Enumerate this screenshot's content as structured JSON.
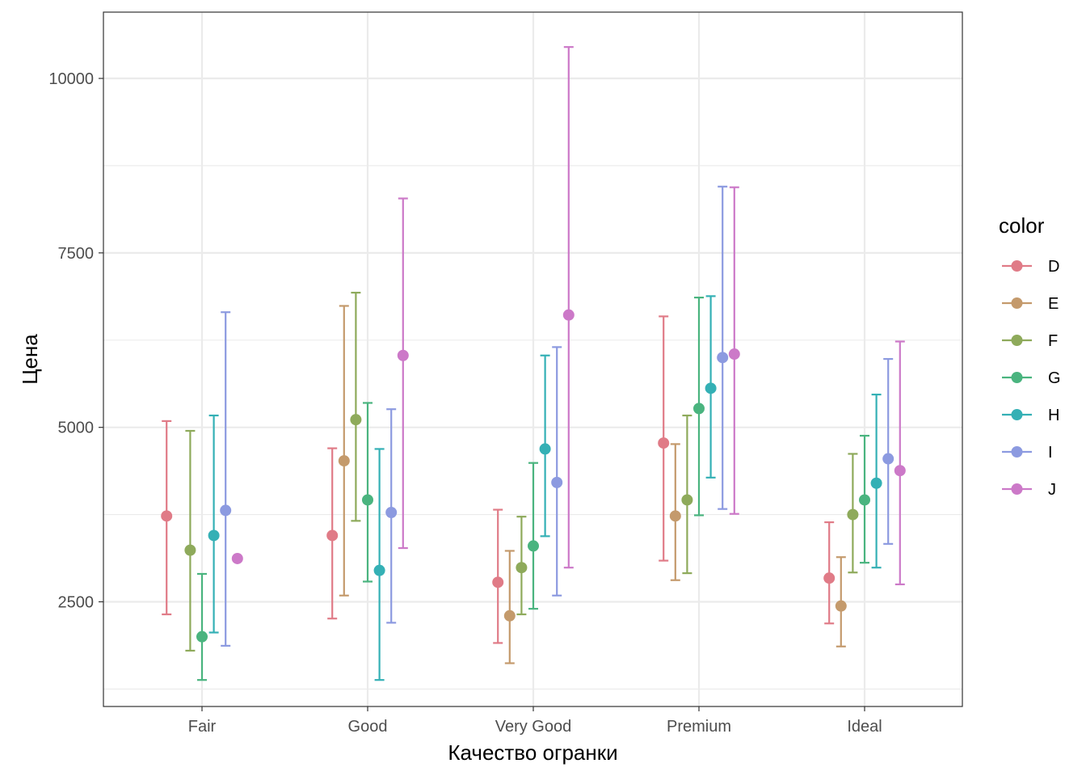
{
  "chart_data": {
    "type": "errorbar",
    "title": "",
    "xlabel": "Качество огранки",
    "ylabel": "Цена",
    "categories": [
      "Fair",
      "Good",
      "Very Good",
      "Premium",
      "Ideal"
    ],
    "y_ticks": [
      2500,
      5000,
      7500,
      10000
    ],
    "y_tick_labels": [
      "2500",
      "5000",
      "7500",
      "10000"
    ],
    "ylim": [
      1000,
      10950
    ],
    "grid": true,
    "legend": {
      "title": "color",
      "position": "right"
    },
    "series": [
      {
        "name": "D",
        "color": "#E07B87",
        "values": [
          3730,
          3450,
          2780,
          4775,
          2840
        ],
        "lower": [
          2320,
          2260,
          1910,
          3090,
          2190
        ],
        "upper": [
          5090,
          4700,
          3820,
          6590,
          3640
        ]
      },
      {
        "name": "E",
        "color": "#C49A6C",
        "values": [
          null,
          4520,
          2300,
          3730,
          2440
        ],
        "lower": [
          null,
          2590,
          1620,
          2810,
          1860
        ],
        "upper": [
          null,
          6740,
          3230,
          4760,
          3140
        ]
      },
      {
        "name": "F",
        "color": "#8EAA5B",
        "values": [
          3240,
          5110,
          2990,
          3960,
          3750
        ],
        "lower": [
          1800,
          3660,
          2320,
          2910,
          2920
        ],
        "upper": [
          4950,
          6930,
          3720,
          5170,
          4620
        ]
      },
      {
        "name": "G",
        "color": "#4AB47F",
        "values": [
          2000,
          3960,
          3300,
          5270,
          3960
        ],
        "lower": [
          1380,
          2790,
          2400,
          3740,
          3060
        ],
        "upper": [
          2900,
          5350,
          4490,
          6860,
          4880
        ]
      },
      {
        "name": "H",
        "color": "#34B0B5",
        "values": [
          3450,
          2950,
          4690,
          5560,
          4200
        ],
        "lower": [
          2060,
          1380,
          3440,
          4280,
          2990
        ],
        "upper": [
          5170,
          4690,
          6030,
          6880,
          5470
        ]
      },
      {
        "name": "I",
        "color": "#8C9AE0",
        "values": [
          3810,
          3780,
          4210,
          6000,
          4550
        ],
        "lower": [
          1870,
          2200,
          2590,
          3830,
          3330
        ],
        "upper": [
          6650,
          5260,
          6150,
          8450,
          5980
        ]
      },
      {
        "name": "J",
        "color": "#CC79C8",
        "values": [
          3120,
          6030,
          6610,
          6050,
          4380
        ],
        "lower": [
          null,
          3270,
          2990,
          3760,
          2750
        ],
        "upper": [
          null,
          8280,
          10450,
          8440,
          6230
        ]
      }
    ]
  }
}
